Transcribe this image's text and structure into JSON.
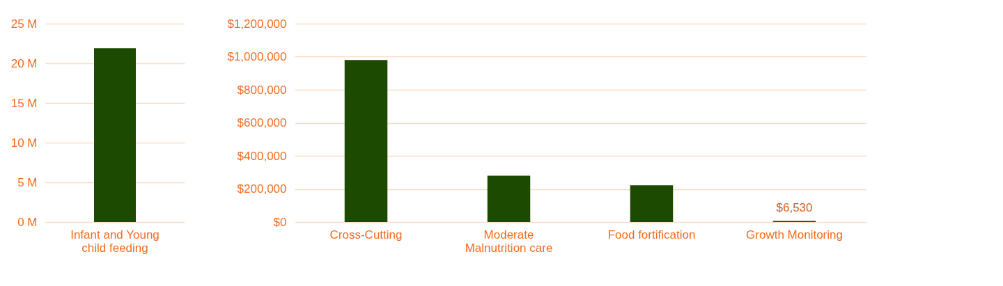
{
  "chart_data": [
    {
      "type": "bar",
      "categories": [
        "Infant and Young child feeding"
      ],
      "values": [
        21.9
      ],
      "colors": [
        "#1c4a00"
      ],
      "ylim": [
        0,
        25
      ],
      "yticks": [
        {
          "value": 0,
          "label": "0 M"
        },
        {
          "value": 5,
          "label": "5 M"
        },
        {
          "value": 10,
          "label": "10 M"
        },
        {
          "value": 15,
          "label": "15 M"
        },
        {
          "value": 20,
          "label": "20 M"
        },
        {
          "value": 25,
          "label": "25 M"
        }
      ],
      "grid": "y"
    },
    {
      "type": "bar",
      "categories": [
        "Cross-Cutting",
        "Moderate Malnutrition care",
        "Food fortification",
        "Growth Monitoring"
      ],
      "values": [
        980000,
        280000,
        222000,
        6530
      ],
      "colors": [
        "#1c4a00",
        "#1c4a00",
        "#1c4a00",
        "#1c4a00"
      ],
      "value_labels": [
        null,
        null,
        null,
        "$6,530"
      ],
      "ylim": [
        0,
        1200000
      ],
      "yticks": [
        {
          "value": 0,
          "label": "$0"
        },
        {
          "value": 200000,
          "label": "$200,000"
        },
        {
          "value": 400000,
          "label": "$400,000"
        },
        {
          "value": 600000,
          "label": "$600,000"
        },
        {
          "value": 800000,
          "label": "$800,000"
        },
        {
          "value": 1000000,
          "label": "$1,000,000"
        },
        {
          "value": 1200000,
          "label": "$1,200,000"
        }
      ],
      "grid": "y"
    }
  ]
}
